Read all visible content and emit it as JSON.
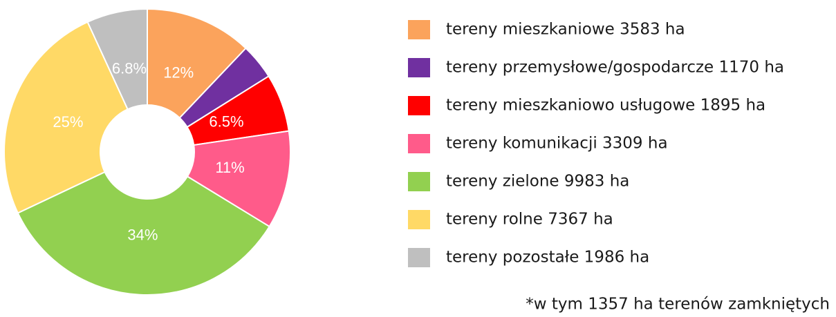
{
  "chart_data": {
    "type": "donut",
    "categories": [
      "tereny mieszkaniowe 3583 ha",
      "tereny przemysłowe/gospodarcze 1170 ha",
      "tereny mieszkaniowo usługowe 1895 ha",
      "tereny komunikacji 3309 ha",
      "tereny zielone 9983 ha",
      "tereny rolne 7367 ha",
      "tereny pozostałe 1986 ha"
    ],
    "values": [
      12,
      4,
      6.5,
      11,
      34,
      25,
      6.8
    ],
    "value_labels": [
      "12%",
      null,
      "6.5%",
      "11%",
      "34%",
      "25%",
      "6.8%"
    ],
    "colors": [
      "#FBA35C",
      "#7030A0",
      "#FF0000",
      "#FF5B8A",
      "#92D050",
      "#FFD966",
      "#BFBFBF"
    ],
    "legend": "right",
    "note": "*w tym 1357 ha terenów zamkniętych"
  }
}
